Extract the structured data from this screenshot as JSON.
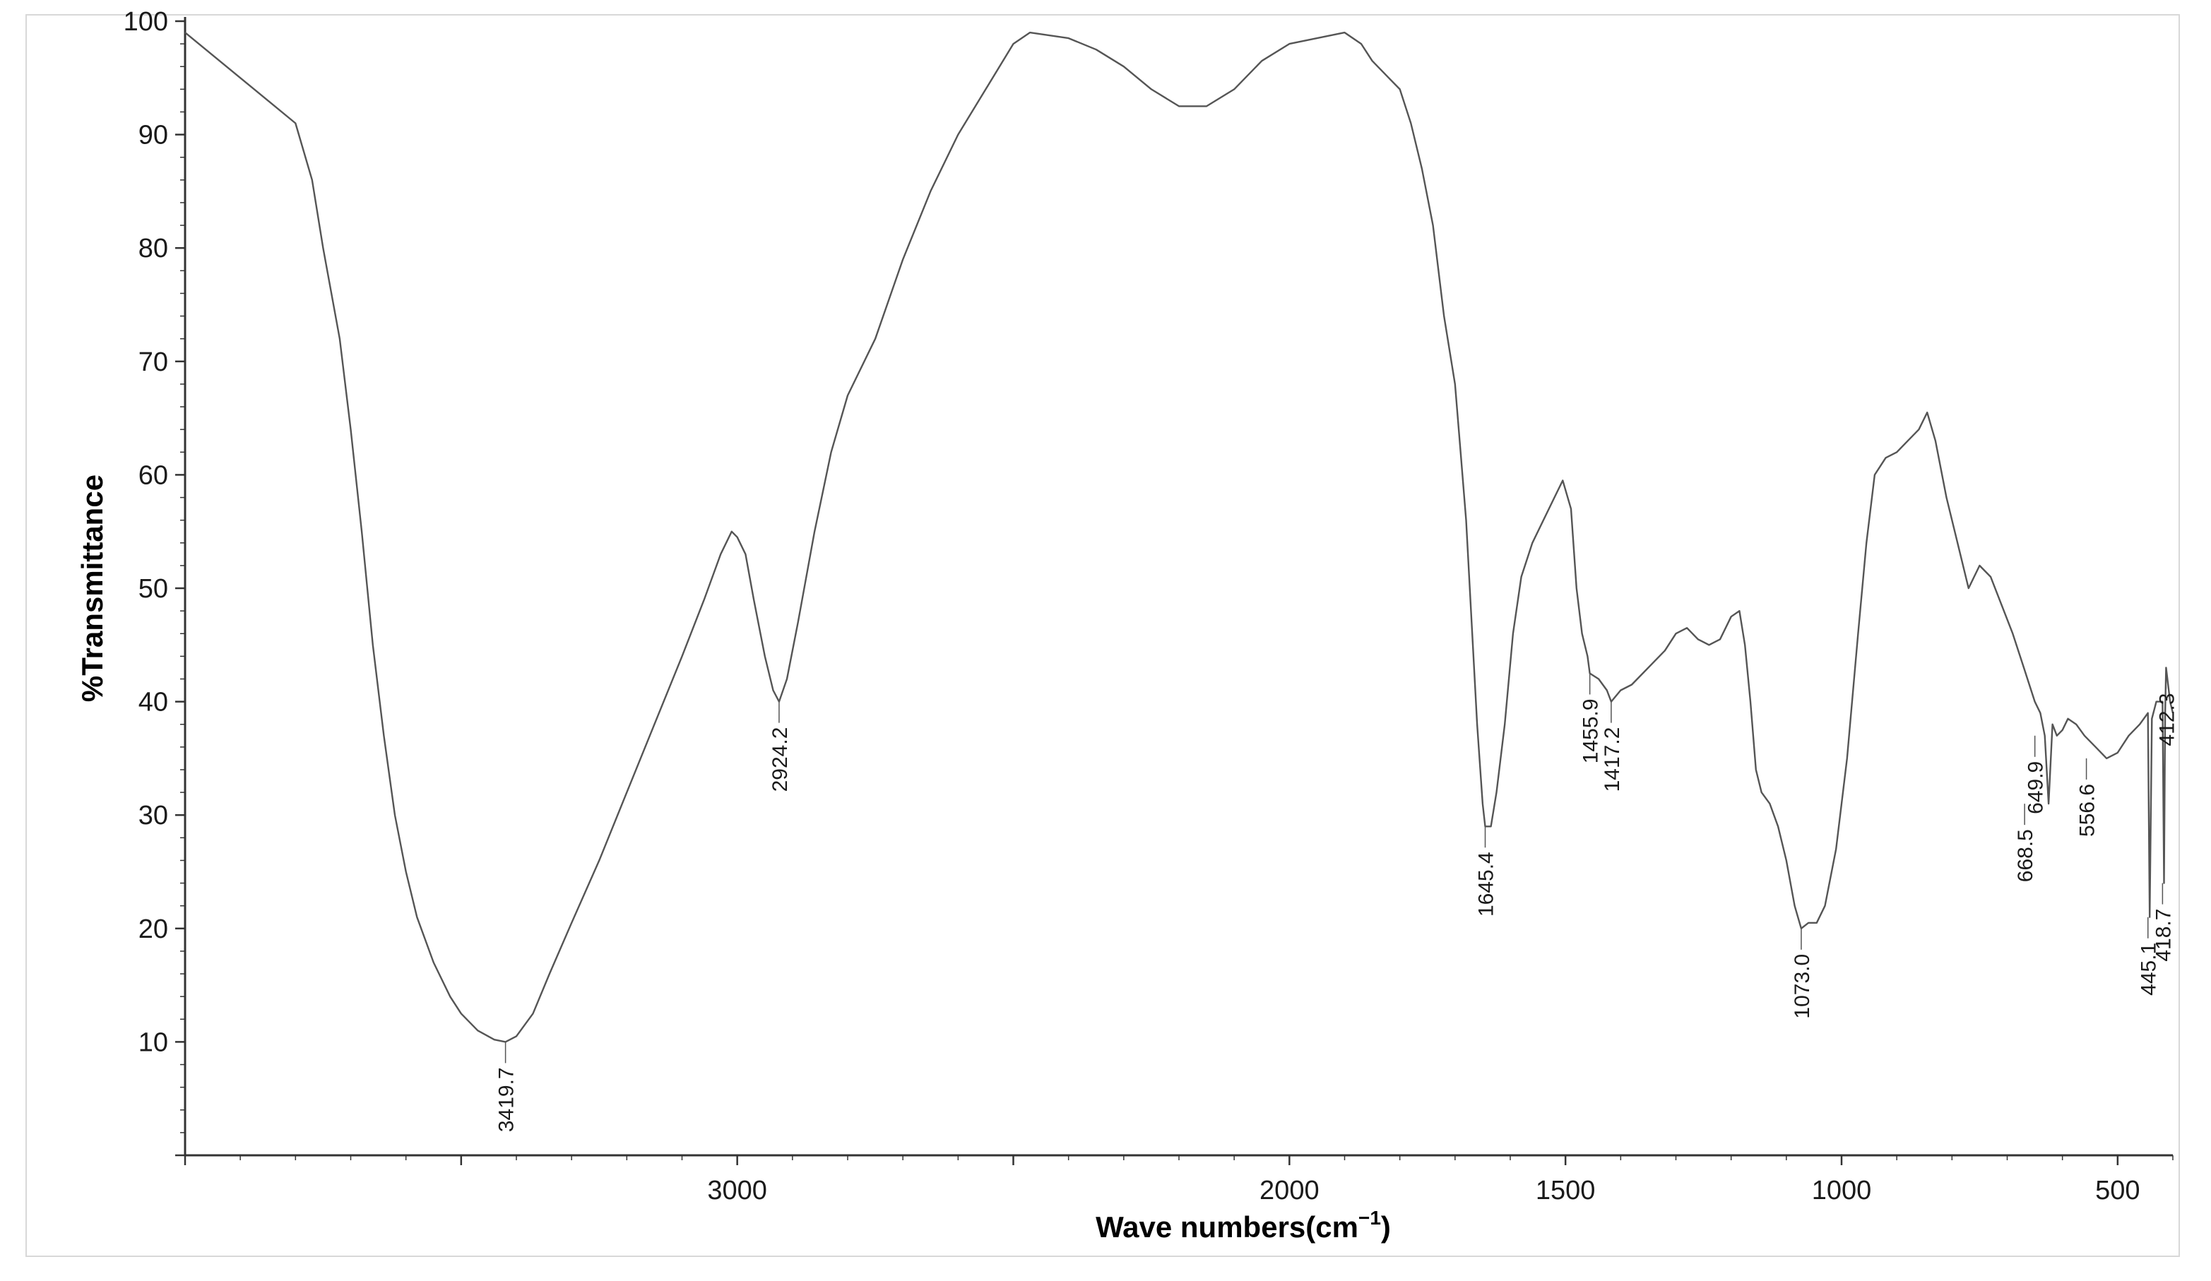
{
  "chart_data": {
    "type": "line",
    "xlabel": "Wave numbers(cm",
    "xlabel_sup": "−1",
    "xlabel_tail": ")",
    "ylabel": "%Transmittance",
    "xlim": [
      4000,
      400
    ],
    "ylim": [
      0,
      100
    ],
    "x_ticks": [
      3000,
      2000,
      1500,
      1000,
      500
    ],
    "y_ticks": [
      10,
      20,
      30,
      40,
      50,
      60,
      70,
      80,
      90,
      100
    ],
    "grid": false,
    "series": [
      {
        "points": [
          [
            4000,
            99
          ],
          [
            3950,
            97
          ],
          [
            3900,
            95
          ],
          [
            3850,
            93
          ],
          [
            3800,
            91
          ],
          [
            3770,
            86
          ],
          [
            3750,
            80
          ],
          [
            3720,
            72
          ],
          [
            3700,
            64
          ],
          [
            3680,
            55
          ],
          [
            3660,
            45
          ],
          [
            3640,
            37
          ],
          [
            3620,
            30
          ],
          [
            3600,
            25
          ],
          [
            3580,
            21
          ],
          [
            3550,
            17
          ],
          [
            3520,
            14
          ],
          [
            3500,
            12.5
          ],
          [
            3470,
            11
          ],
          [
            3440,
            10.2
          ],
          [
            3419.7,
            10
          ],
          [
            3400,
            10.5
          ],
          [
            3370,
            12.5
          ],
          [
            3340,
            16
          ],
          [
            3300,
            20.5
          ],
          [
            3250,
            26
          ],
          [
            3200,
            32
          ],
          [
            3150,
            38
          ],
          [
            3100,
            44
          ],
          [
            3060,
            49
          ],
          [
            3030,
            53
          ],
          [
            3010,
            55
          ],
          [
            3000,
            54.5
          ],
          [
            2985,
            53
          ],
          [
            2970,
            49
          ],
          [
            2950,
            44
          ],
          [
            2935,
            41
          ],
          [
            2924.2,
            40
          ],
          [
            2910,
            42
          ],
          [
            2890,
            47
          ],
          [
            2860,
            55
          ],
          [
            2830,
            62
          ],
          [
            2800,
            67
          ],
          [
            2750,
            72
          ],
          [
            2700,
            79
          ],
          [
            2650,
            85
          ],
          [
            2600,
            90
          ],
          [
            2550,
            94
          ],
          [
            2500,
            98
          ],
          [
            2470,
            99
          ],
          [
            2400,
            98.5
          ],
          [
            2350,
            97.5
          ],
          [
            2300,
            96
          ],
          [
            2250,
            94
          ],
          [
            2200,
            92.5
          ],
          [
            2150,
            92.5
          ],
          [
            2100,
            94
          ],
          [
            2050,
            96.5
          ],
          [
            2000,
            98
          ],
          [
            1950,
            98.5
          ],
          [
            1900,
            99
          ],
          [
            1870,
            98
          ],
          [
            1850,
            96.5
          ],
          [
            1820,
            95
          ],
          [
            1800,
            94
          ],
          [
            1780,
            91
          ],
          [
            1760,
            87
          ],
          [
            1740,
            82
          ],
          [
            1720,
            74
          ],
          [
            1700,
            68
          ],
          [
            1690,
            62
          ],
          [
            1680,
            56
          ],
          [
            1670,
            47
          ],
          [
            1660,
            38
          ],
          [
            1650,
            31
          ],
          [
            1645.4,
            29
          ],
          [
            1635,
            29
          ],
          [
            1625,
            32
          ],
          [
            1610,
            38
          ],
          [
            1595,
            46
          ],
          [
            1580,
            51
          ],
          [
            1560,
            54
          ],
          [
            1540,
            56
          ],
          [
            1520,
            58
          ],
          [
            1505,
            59.5
          ],
          [
            1490,
            57
          ],
          [
            1480,
            50
          ],
          [
            1470,
            46
          ],
          [
            1460,
            44
          ],
          [
            1455.9,
            42.5
          ],
          [
            1440,
            42
          ],
          [
            1425,
            41
          ],
          [
            1417.2,
            40
          ],
          [
            1400,
            41
          ],
          [
            1380,
            41.5
          ],
          [
            1360,
            42.5
          ],
          [
            1340,
            43.5
          ],
          [
            1320,
            44.5
          ],
          [
            1300,
            46
          ],
          [
            1280,
            46.5
          ],
          [
            1260,
            45.5
          ],
          [
            1240,
            45
          ],
          [
            1220,
            45.5
          ],
          [
            1200,
            47.5
          ],
          [
            1185,
            48
          ],
          [
            1175,
            45
          ],
          [
            1165,
            40
          ],
          [
            1155,
            34
          ],
          [
            1145,
            32
          ],
          [
            1130,
            31
          ],
          [
            1115,
            29
          ],
          [
            1100,
            26
          ],
          [
            1085,
            22
          ],
          [
            1073,
            20
          ],
          [
            1060,
            20.5
          ],
          [
            1045,
            20.5
          ],
          [
            1030,
            22
          ],
          [
            1010,
            27
          ],
          [
            990,
            35
          ],
          [
            970,
            46
          ],
          [
            955,
            54
          ],
          [
            940,
            60
          ],
          [
            920,
            61.5
          ],
          [
            900,
            62
          ],
          [
            880,
            63
          ],
          [
            860,
            64
          ],
          [
            845,
            65.5
          ],
          [
            830,
            63
          ],
          [
            810,
            58
          ],
          [
            790,
            54
          ],
          [
            770,
            50
          ],
          [
            750,
            52
          ],
          [
            730,
            51
          ],
          [
            710,
            48.5
          ],
          [
            690,
            46
          ],
          [
            670,
            43
          ],
          [
            650,
            40
          ],
          [
            640,
            39
          ],
          [
            632,
            37
          ],
          [
            625,
            31
          ],
          [
            618,
            38
          ],
          [
            610,
            37
          ],
          [
            600,
            37.5
          ],
          [
            590,
            38.5
          ],
          [
            575,
            38
          ],
          [
            560,
            37
          ],
          [
            540,
            36
          ],
          [
            520,
            35
          ],
          [
            500,
            35.5
          ],
          [
            480,
            37
          ],
          [
            460,
            38
          ],
          [
            445.1,
            39
          ],
          [
            442,
            21
          ],
          [
            438,
            38.5
          ],
          [
            430,
            40
          ],
          [
            418.7,
            40
          ],
          [
            416,
            24
          ],
          [
            414,
            39
          ],
          [
            412.3,
            43
          ],
          [
            405,
            40
          ],
          [
            400,
            39
          ]
        ]
      }
    ],
    "peak_labels": [
      {
        "x": 3419.7,
        "y": 10,
        "label": "3419.7"
      },
      {
        "x": 2924.2,
        "y": 40,
        "label": "2924.2"
      },
      {
        "x": 1645.4,
        "y": 29,
        "label": "1645.4"
      },
      {
        "x": 1455.9,
        "y": 42.5,
        "label": "1455.9"
      },
      {
        "x": 1417.2,
        "y": 40,
        "label": "1417.2"
      },
      {
        "x": 1073.0,
        "y": 20,
        "label": "1073.0"
      },
      {
        "x": 668.5,
        "y": 31,
        "label": "668.5"
      },
      {
        "x": 649.9,
        "y": 37,
        "label": "649.9"
      },
      {
        "x": 556.6,
        "y": 35,
        "label": "556.6"
      },
      {
        "x": 445.1,
        "y": 21,
        "label": "445.1"
      },
      {
        "x": 418.7,
        "y": 24,
        "label": "418.7"
      },
      {
        "x": 412.3,
        "y": 43,
        "label": "412.3"
      }
    ],
    "line_color": "#555555"
  }
}
